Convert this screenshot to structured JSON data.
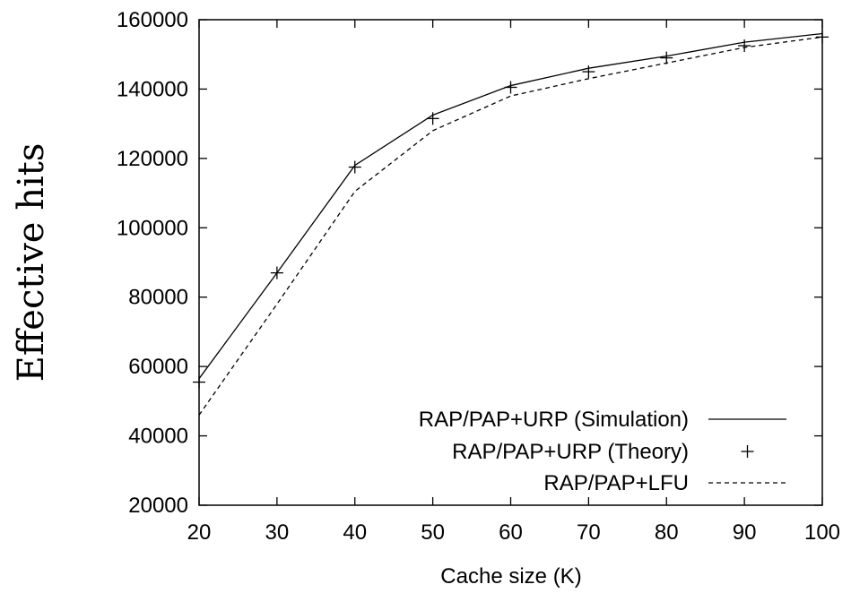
{
  "chart_data": {
    "type": "line",
    "xlabel": "Cache size (K)",
    "ylabel": "Effective hits",
    "xlim": [
      20,
      100
    ],
    "ylim": [
      20000,
      160000
    ],
    "xticks": [
      20,
      30,
      40,
      50,
      60,
      70,
      80,
      90,
      100
    ],
    "yticks": [
      20000,
      40000,
      60000,
      80000,
      100000,
      120000,
      140000,
      160000
    ],
    "x": [
      20,
      30,
      40,
      50,
      60,
      70,
      80,
      90,
      100
    ],
    "grid": false,
    "legend_position": "bottom-right",
    "series": [
      {
        "name": "RAP/PAP+URP (Simulation)",
        "style": "solid-line",
        "values": [
          56500,
          87000,
          118000,
          132500,
          141000,
          146000,
          149500,
          153500,
          156000
        ]
      },
      {
        "name": "RAP/PAP+URP (Theory)",
        "style": "plus-points",
        "values": [
          55500,
          87000,
          117500,
          131500,
          140500,
          145000,
          149000,
          152500,
          155000
        ]
      },
      {
        "name": "RAP/PAP+LFU",
        "style": "dashed-line",
        "values": [
          46000,
          78000,
          110500,
          128000,
          138000,
          143000,
          147500,
          152000,
          155000
        ]
      }
    ]
  }
}
